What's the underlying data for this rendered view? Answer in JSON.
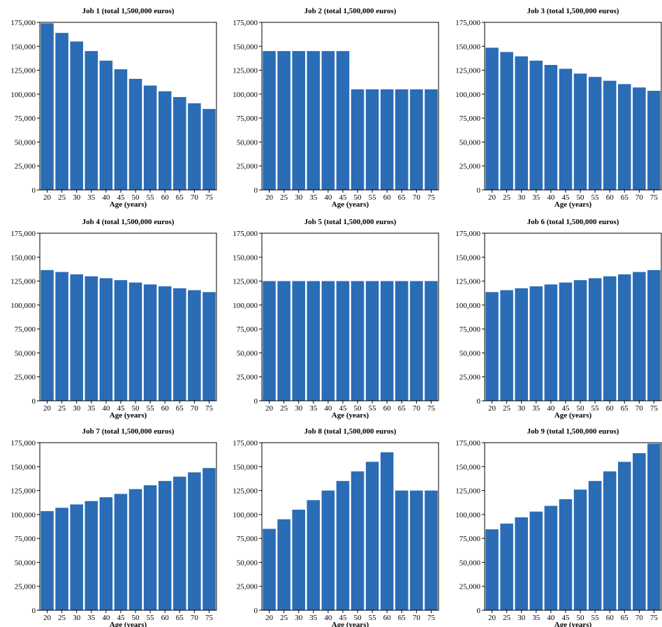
{
  "chart_data": [
    {
      "type": "bar",
      "title": "Job 1 (total 1,500,000 euros)",
      "xlabel": "Age (years)",
      "ylabel": "",
      "categories": [
        "20",
        "25",
        "30",
        "35",
        "40",
        "45",
        "50",
        "55",
        "60",
        "65",
        "70",
        "75"
      ],
      "values": [
        174000,
        164000,
        155000,
        145000,
        135000,
        126000,
        116000,
        109000,
        103000,
        97000,
        90500,
        84500
      ],
      "ylim": [
        0,
        175000
      ],
      "yticks": [
        0,
        25000,
        50000,
        75000,
        100000,
        125000,
        150000,
        175000
      ],
      "ytick_labels": [
        "0",
        "25,000",
        "50,000",
        "75,000",
        "100,000",
        "125,000",
        "150,000",
        "175,000"
      ],
      "bar_color": "#2a6cb6",
      "grid": false,
      "legend": false
    },
    {
      "type": "bar",
      "title": "Job 2 (total 1,500,000 euros)",
      "xlabel": "Age (years)",
      "ylabel": "",
      "categories": [
        "20",
        "25",
        "30",
        "35",
        "40",
        "45",
        "50",
        "55",
        "60",
        "65",
        "70",
        "75"
      ],
      "values": [
        145000,
        145000,
        145000,
        145000,
        145000,
        145000,
        105000,
        105000,
        105000,
        105000,
        105000,
        105000
      ],
      "ylim": [
        0,
        175000
      ],
      "yticks": [
        0,
        25000,
        50000,
        75000,
        100000,
        125000,
        150000,
        175000
      ],
      "ytick_labels": [
        "0",
        "25,000",
        "50,000",
        "75,000",
        "100,000",
        "125,000",
        "150,000",
        "175,000"
      ],
      "bar_color": "#2a6cb6",
      "grid": false,
      "legend": false
    },
    {
      "type": "bar",
      "title": "Job 3 (total 1,500,000 euros)",
      "xlabel": "Age (years)",
      "ylabel": "",
      "categories": [
        "20",
        "25",
        "30",
        "35",
        "40",
        "45",
        "50",
        "55",
        "60",
        "65",
        "70",
        "75"
      ],
      "values": [
        148500,
        144000,
        139500,
        135000,
        130500,
        126500,
        121500,
        118000,
        114000,
        110500,
        107000,
        103500
      ],
      "ylim": [
        0,
        175000
      ],
      "yticks": [
        0,
        25000,
        50000,
        75000,
        100000,
        125000,
        150000,
        175000
      ],
      "ytick_labels": [
        "0",
        "25,000",
        "50,000",
        "75,000",
        "100,000",
        "125,000",
        "150,000",
        "175,000"
      ],
      "bar_color": "#2a6cb6",
      "grid": false,
      "legend": false
    },
    {
      "type": "bar",
      "title": "Job 4 (total 1,500,000 euros)",
      "xlabel": "Age (years)",
      "ylabel": "",
      "categories": [
        "20",
        "25",
        "30",
        "35",
        "40",
        "45",
        "50",
        "55",
        "60",
        "65",
        "70",
        "75"
      ],
      "values": [
        136500,
        134500,
        132000,
        130000,
        128000,
        126000,
        123500,
        121500,
        119500,
        117500,
        115500,
        113500
      ],
      "ylim": [
        0,
        175000
      ],
      "yticks": [
        0,
        25000,
        50000,
        75000,
        100000,
        125000,
        150000,
        175000
      ],
      "ytick_labels": [
        "0",
        "25,000",
        "50,000",
        "75,000",
        "100,000",
        "125,000",
        "150,000",
        "175,000"
      ],
      "bar_color": "#2a6cb6",
      "grid": false,
      "legend": false
    },
    {
      "type": "bar",
      "title": "Job 5 (total 1,500,000 euros)",
      "xlabel": "Age (years)",
      "ylabel": "",
      "categories": [
        "20",
        "25",
        "30",
        "35",
        "40",
        "45",
        "50",
        "55",
        "60",
        "65",
        "70",
        "75"
      ],
      "values": [
        125000,
        125000,
        125000,
        125000,
        125000,
        125000,
        125000,
        125000,
        125000,
        125000,
        125000,
        125000
      ],
      "ylim": [
        0,
        175000
      ],
      "yticks": [
        0,
        25000,
        50000,
        75000,
        100000,
        125000,
        150000,
        175000
      ],
      "ytick_labels": [
        "0",
        "25,000",
        "50,000",
        "75,000",
        "100,000",
        "125,000",
        "150,000",
        "175,000"
      ],
      "bar_color": "#2a6cb6",
      "grid": false,
      "legend": false
    },
    {
      "type": "bar",
      "title": "Job 6 (total 1,500,000 euros)",
      "xlabel": "Age (years)",
      "ylabel": "",
      "categories": [
        "20",
        "25",
        "30",
        "35",
        "40",
        "45",
        "50",
        "55",
        "60",
        "65",
        "70",
        "75"
      ],
      "values": [
        113500,
        115500,
        117500,
        119500,
        121500,
        123500,
        126000,
        128000,
        130000,
        132000,
        134500,
        136500
      ],
      "ylim": [
        0,
        175000
      ],
      "yticks": [
        0,
        25000,
        50000,
        75000,
        100000,
        125000,
        150000,
        175000
      ],
      "ytick_labels": [
        "0",
        "25,000",
        "50,000",
        "75,000",
        "100,000",
        "125,000",
        "150,000",
        "175,000"
      ],
      "bar_color": "#2a6cb6",
      "grid": false,
      "legend": false
    },
    {
      "type": "bar",
      "title": "Job 7 (total 1,500,000 euros)",
      "xlabel": "Age (years)",
      "ylabel": "",
      "categories": [
        "20",
        "25",
        "30",
        "35",
        "40",
        "45",
        "50",
        "55",
        "60",
        "65",
        "70",
        "75"
      ],
      "values": [
        103500,
        107000,
        110500,
        114000,
        118000,
        121500,
        126500,
        130500,
        135000,
        139500,
        144000,
        148500
      ],
      "ylim": [
        0,
        175000
      ],
      "yticks": [
        0,
        25000,
        50000,
        75000,
        100000,
        125000,
        150000,
        175000
      ],
      "ytick_labels": [
        "0",
        "25,000",
        "50,000",
        "75,000",
        "100,000",
        "125,000",
        "150,000",
        "175,000"
      ],
      "bar_color": "#2a6cb6",
      "grid": false,
      "legend": false
    },
    {
      "type": "bar",
      "title": "Job 8 (total 1,500,000 euros)",
      "xlabel": "Age (years)",
      "ylabel": "",
      "categories": [
        "20",
        "25",
        "30",
        "35",
        "40",
        "45",
        "50",
        "55",
        "60",
        "65",
        "70",
        "75"
      ],
      "values": [
        85000,
        95000,
        105000,
        115000,
        125000,
        135000,
        145000,
        155000,
        165000,
        125000,
        125000,
        125000
      ],
      "ylim": [
        0,
        175000
      ],
      "yticks": [
        0,
        25000,
        50000,
        75000,
        100000,
        125000,
        150000,
        175000
      ],
      "ytick_labels": [
        "0",
        "25,000",
        "50,000",
        "75,000",
        "100,000",
        "125,000",
        "150,000",
        "175,000"
      ],
      "bar_color": "#2a6cb6",
      "grid": false,
      "legend": false
    },
    {
      "type": "bar",
      "title": "Job 9 (total 1,500,000 euros)",
      "xlabel": "Age (years)",
      "ylabel": "",
      "categories": [
        "20",
        "25",
        "30",
        "35",
        "40",
        "45",
        "50",
        "55",
        "60",
        "65",
        "70",
        "75"
      ],
      "values": [
        84500,
        90500,
        97000,
        103000,
        109000,
        116000,
        126000,
        135000,
        145000,
        155000,
        164000,
        174000
      ],
      "ylim": [
        0,
        175000
      ],
      "yticks": [
        0,
        25000,
        50000,
        75000,
        100000,
        125000,
        150000,
        175000
      ],
      "ytick_labels": [
        "0",
        "25,000",
        "50,000",
        "75,000",
        "100,000",
        "125,000",
        "150,000",
        "175,000"
      ],
      "bar_color": "#2a6cb6",
      "grid": false,
      "legend": false
    }
  ]
}
